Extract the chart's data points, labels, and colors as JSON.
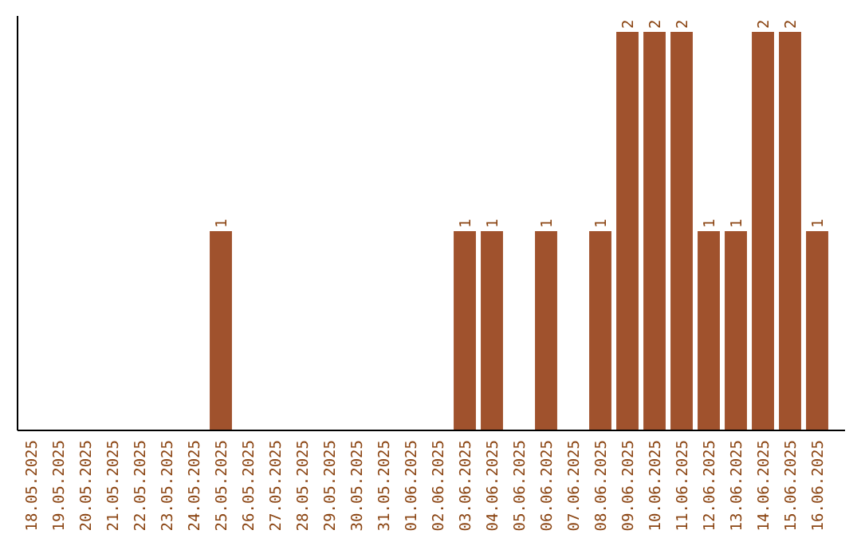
{
  "chart_data": {
    "type": "bar",
    "categories": [
      "18.05.2025",
      "19.05.2025",
      "20.05.2025",
      "21.05.2025",
      "22.05.2025",
      "23.05.2025",
      "24.05.2025",
      "25.05.2025",
      "26.05.2025",
      "27.05.2025",
      "28.05.2025",
      "29.05.2025",
      "30.05.2025",
      "31.05.2025",
      "01.06.2025",
      "02.06.2025",
      "03.06.2025",
      "04.06.2025",
      "05.06.2025",
      "06.06.2025",
      "07.06.2025",
      "08.06.2025",
      "09.06.2025",
      "10.06.2025",
      "11.06.2025",
      "12.06.2025",
      "13.06.2025",
      "14.06.2025",
      "15.06.2025",
      "16.06.2025"
    ],
    "values": [
      0,
      0,
      0,
      0,
      0,
      0,
      0,
      1,
      0,
      0,
      0,
      0,
      0,
      0,
      0,
      0,
      1,
      1,
      0,
      1,
      0,
      1,
      2,
      2,
      2,
      1,
      1,
      2,
      2,
      1
    ],
    "value_labels": [
      null,
      null,
      null,
      null,
      null,
      null,
      null,
      "1",
      null,
      null,
      null,
      null,
      null,
      null,
      null,
      null,
      "1",
      "1",
      null,
      "1",
      null,
      "1",
      "2",
      "2",
      "2",
      "1",
      "1",
      "2",
      "2",
      "1"
    ],
    "color": "#a0522d"
  }
}
